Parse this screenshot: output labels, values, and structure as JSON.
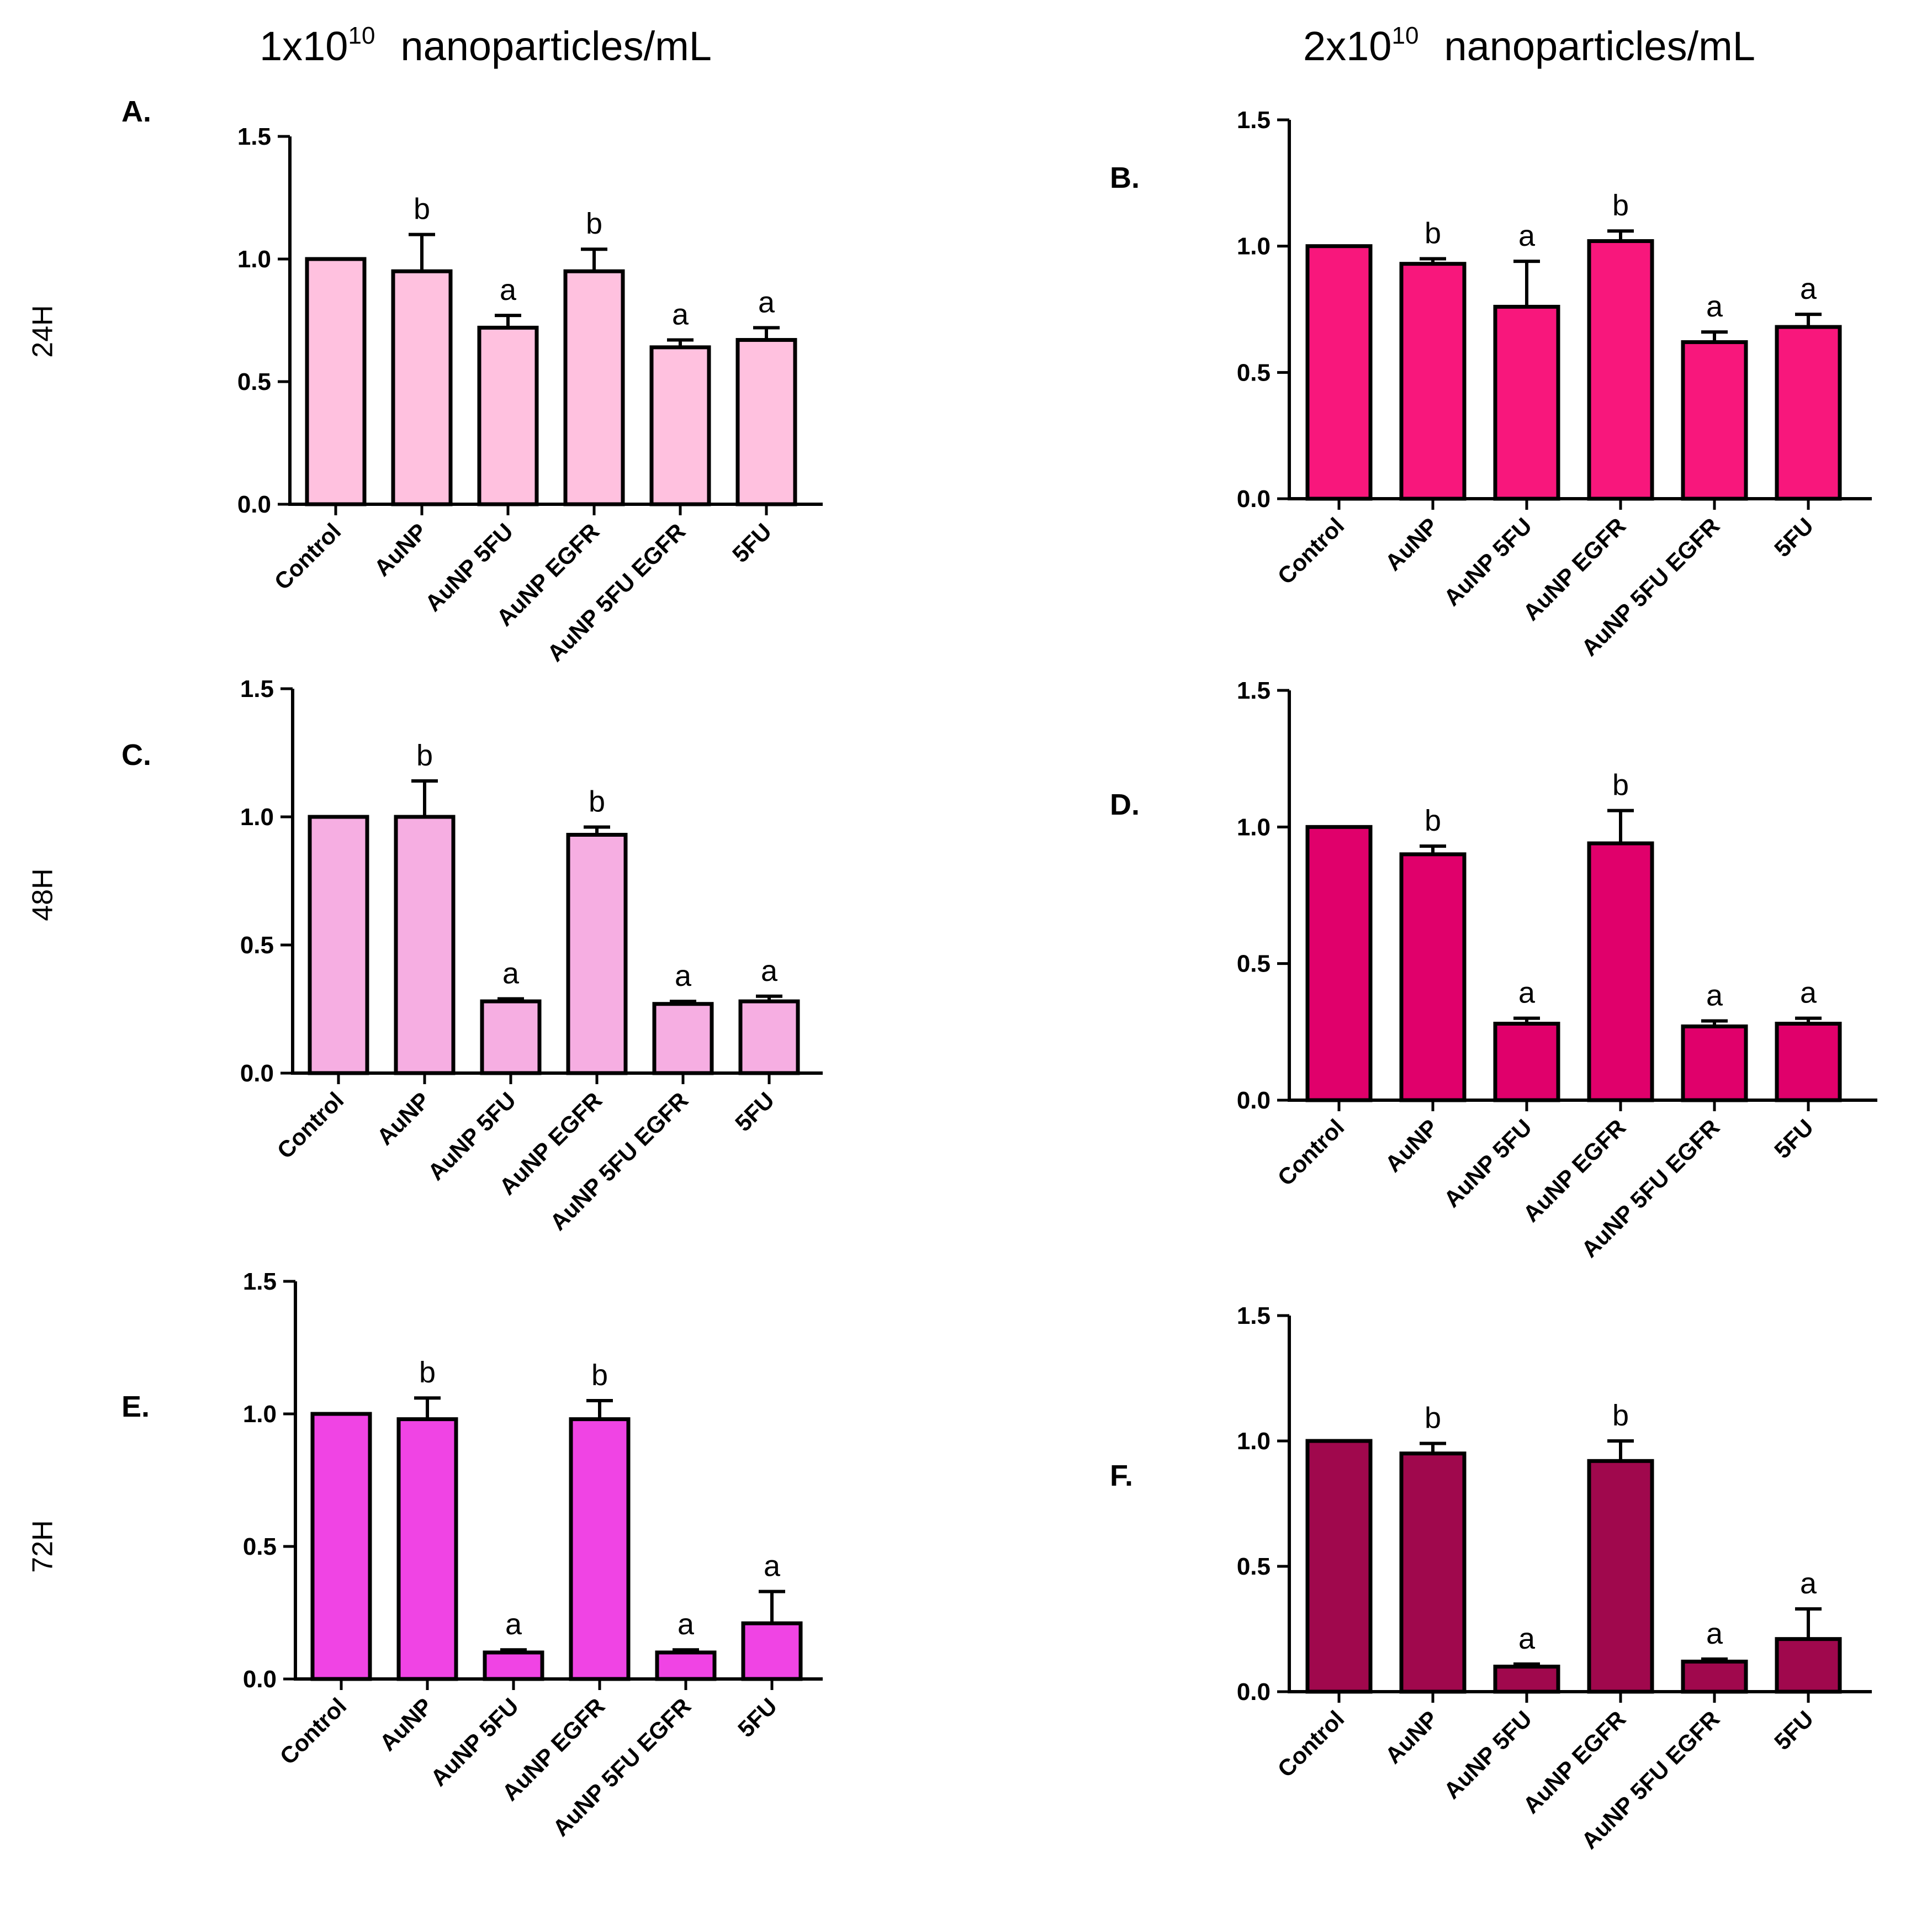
{
  "column_headers": [
    {
      "base": "1x10",
      "exponent": "10",
      "unit": "nanoparticles/mL"
    },
    {
      "base": "2x10",
      "exponent": "10",
      "unit": "nanoparticles/mL"
    }
  ],
  "row_labels": [
    "24H",
    "48H",
    "72H"
  ],
  "colors": {
    "A": "#ffc1df",
    "B": "#f8177c",
    "C": "#f6aee2",
    "D": "#e0006b",
    "E": "#f044e4",
    "F": "#a0084d"
  },
  "chart_data": [
    {
      "panel": "A.",
      "type": "bar",
      "categories": [
        "Control",
        "AuNP",
        "AuNP 5FU",
        "AuNP EGFR",
        "AuNP 5FU EGFR",
        "5FU"
      ],
      "values": [
        1.0,
        0.95,
        0.72,
        0.95,
        0.64,
        0.67
      ],
      "errors": [
        0,
        0.15,
        0.05,
        0.09,
        0.03,
        0.05
      ],
      "annotations": [
        "",
        "b",
        "a",
        "b",
        "a",
        "a"
      ],
      "ylim": [
        0,
        1.5
      ],
      "yticks": [
        "0.0",
        "0.5",
        "1.0",
        "1.5"
      ]
    },
    {
      "panel": "B.",
      "type": "bar",
      "categories": [
        "Control",
        "AuNP",
        "AuNP 5FU",
        "AuNP EGFR",
        "AuNP 5FU EGFR",
        "5FU"
      ],
      "values": [
        1.0,
        0.93,
        0.76,
        1.02,
        0.62,
        0.68
      ],
      "errors": [
        0,
        0.02,
        0.18,
        0.04,
        0.04,
        0.05
      ],
      "annotations": [
        "",
        "b",
        "a",
        "b",
        "a",
        "a"
      ],
      "ylim": [
        0,
        1.5
      ],
      "yticks": [
        "0.0",
        "0.5",
        "1.0",
        "1.5"
      ]
    },
    {
      "panel": "C.",
      "type": "bar",
      "categories": [
        "Control",
        "AuNP",
        "AuNP 5FU",
        "AuNP EGFR",
        "AuNP 5FU EGFR",
        "5FU"
      ],
      "values": [
        1.0,
        1.0,
        0.28,
        0.93,
        0.27,
        0.28
      ],
      "errors": [
        0,
        0.14,
        0.01,
        0.03,
        0.01,
        0.02
      ],
      "annotations": [
        "",
        "b",
        "a",
        "b",
        "a",
        "a"
      ],
      "ylim": [
        0,
        1.5
      ],
      "yticks": [
        "0.0",
        "0.5",
        "1.0",
        "1.5"
      ]
    },
    {
      "panel": "D.",
      "type": "bar",
      "categories": [
        "Control",
        "AuNP",
        "AuNP 5FU",
        "AuNP EGFR",
        "AuNP 5FU EGFR",
        "5FU"
      ],
      "values": [
        1.0,
        0.9,
        0.28,
        0.94,
        0.27,
        0.28
      ],
      "errors": [
        0,
        0.03,
        0.02,
        0.12,
        0.02,
        0.02
      ],
      "annotations": [
        "",
        "b",
        "a",
        "b",
        "a",
        "a"
      ],
      "ylim": [
        0,
        1.5
      ],
      "yticks": [
        "0.0",
        "0.5",
        "1.0",
        "1.5"
      ]
    },
    {
      "panel": "E.",
      "type": "bar",
      "categories": [
        "Control",
        "AuNP",
        "AuNP 5FU",
        "AuNP EGFR",
        "AuNP 5FU EGFR",
        "5FU"
      ],
      "values": [
        1.0,
        0.98,
        0.1,
        0.98,
        0.1,
        0.21
      ],
      "errors": [
        0,
        0.08,
        0.01,
        0.07,
        0.01,
        0.12
      ],
      "annotations": [
        "",
        "b",
        "a",
        "b",
        "a",
        "a"
      ],
      "ylim": [
        0,
        1.5
      ],
      "yticks": [
        "0.0",
        "0.5",
        "1.0",
        "1.5"
      ]
    },
    {
      "panel": "F.",
      "type": "bar",
      "categories": [
        "Control",
        "AuNP",
        "AuNP 5FU",
        "AuNP EGFR",
        "AuNP 5FU EGFR",
        "5FU"
      ],
      "values": [
        1.0,
        0.95,
        0.1,
        0.92,
        0.12,
        0.21
      ],
      "errors": [
        0,
        0.04,
        0.01,
        0.08,
        0.01,
        0.12
      ],
      "annotations": [
        "",
        "b",
        "a",
        "b",
        "a",
        "a"
      ],
      "ylim": [
        0,
        1.5
      ],
      "yticks": [
        "0.0",
        "0.5",
        "1.0",
        "1.5"
      ]
    }
  ]
}
